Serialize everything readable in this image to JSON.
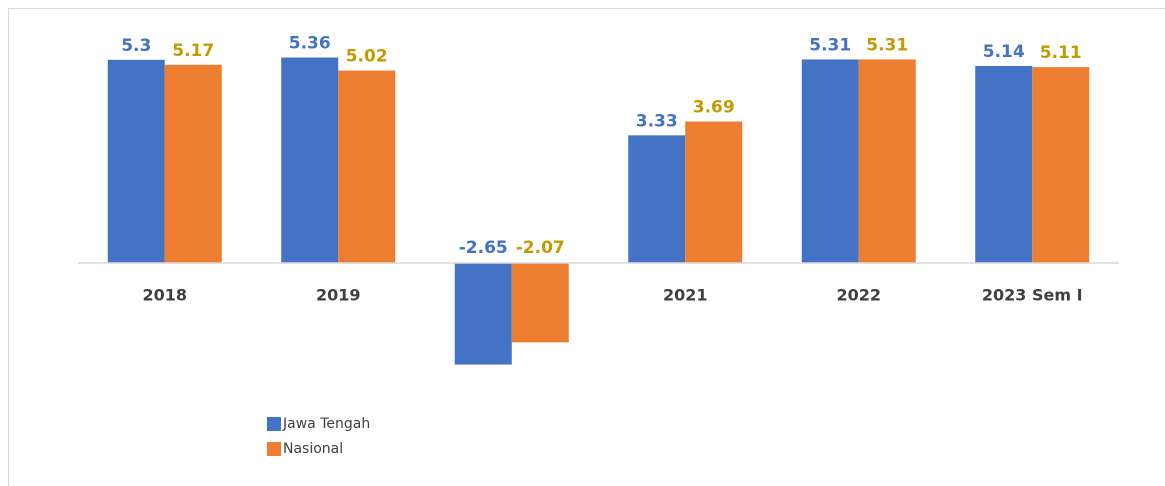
{
  "chart_data": {
    "type": "bar",
    "categories": [
      "2018",
      "2019",
      null,
      "2021",
      "2022",
      "2023 Sem I"
    ],
    "series": [
      {
        "name": "Jawa Tengah",
        "color": "#4472c4",
        "label_color": "#4472c4",
        "values": [
          5.3,
          5.36,
          -2.65,
          3.33,
          5.31,
          5.14
        ]
      },
      {
        "name": "Nasional",
        "color": "#ed7d31",
        "label_color": "#c49a00",
        "values": [
          5.17,
          5.02,
          -2.07,
          3.69,
          5.31,
          5.11
        ]
      }
    ],
    "ylim": [
      -3,
      6
    ],
    "legend": "bottom-left"
  }
}
